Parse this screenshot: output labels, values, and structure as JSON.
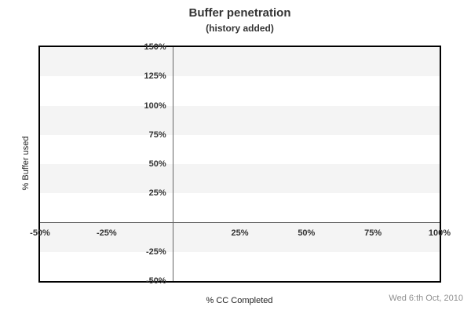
{
  "title": "Buffer penetration",
  "subtitle": "(history added)",
  "footer": {
    "date": "Wed 6:th Oct, 2010"
  },
  "chart_data": {
    "type": "line",
    "title": "Buffer penetration",
    "subtitle": "(history added)",
    "xlabel": "% CC Completed",
    "ylabel": "% Buffer used",
    "xlim": [
      -50,
      100
    ],
    "ylim": [
      -50,
      150
    ],
    "x_ticks": [
      {
        "value": -50,
        "label": "-50%"
      },
      {
        "value": -25,
        "label": "-25%"
      },
      {
        "value": 25,
        "label": "25%"
      },
      {
        "value": 50,
        "label": "50%"
      },
      {
        "value": 75,
        "label": "75%"
      },
      {
        "value": 100,
        "label": "100%"
      }
    ],
    "y_ticks": [
      {
        "value": 150,
        "label": "150%"
      },
      {
        "value": 125,
        "label": "125%"
      },
      {
        "value": 100,
        "label": "100%"
      },
      {
        "value": 75,
        "label": "75%"
      },
      {
        "value": 50,
        "label": "50%"
      },
      {
        "value": 25,
        "label": "25%"
      },
      {
        "value": -25,
        "label": "-25%"
      },
      {
        "value": -50,
        "label": "-50%"
      }
    ],
    "series": [],
    "stripes": {
      "step": 25,
      "color": "#f4f4f4",
      "alt_color": "#ffffff"
    },
    "grid": false,
    "legend": false,
    "colors": {
      "zero_line": "#666666",
      "border": "#000000",
      "text": "#333333",
      "date_text": "#8f8f8f",
      "band": "#f4f4f4"
    }
  }
}
